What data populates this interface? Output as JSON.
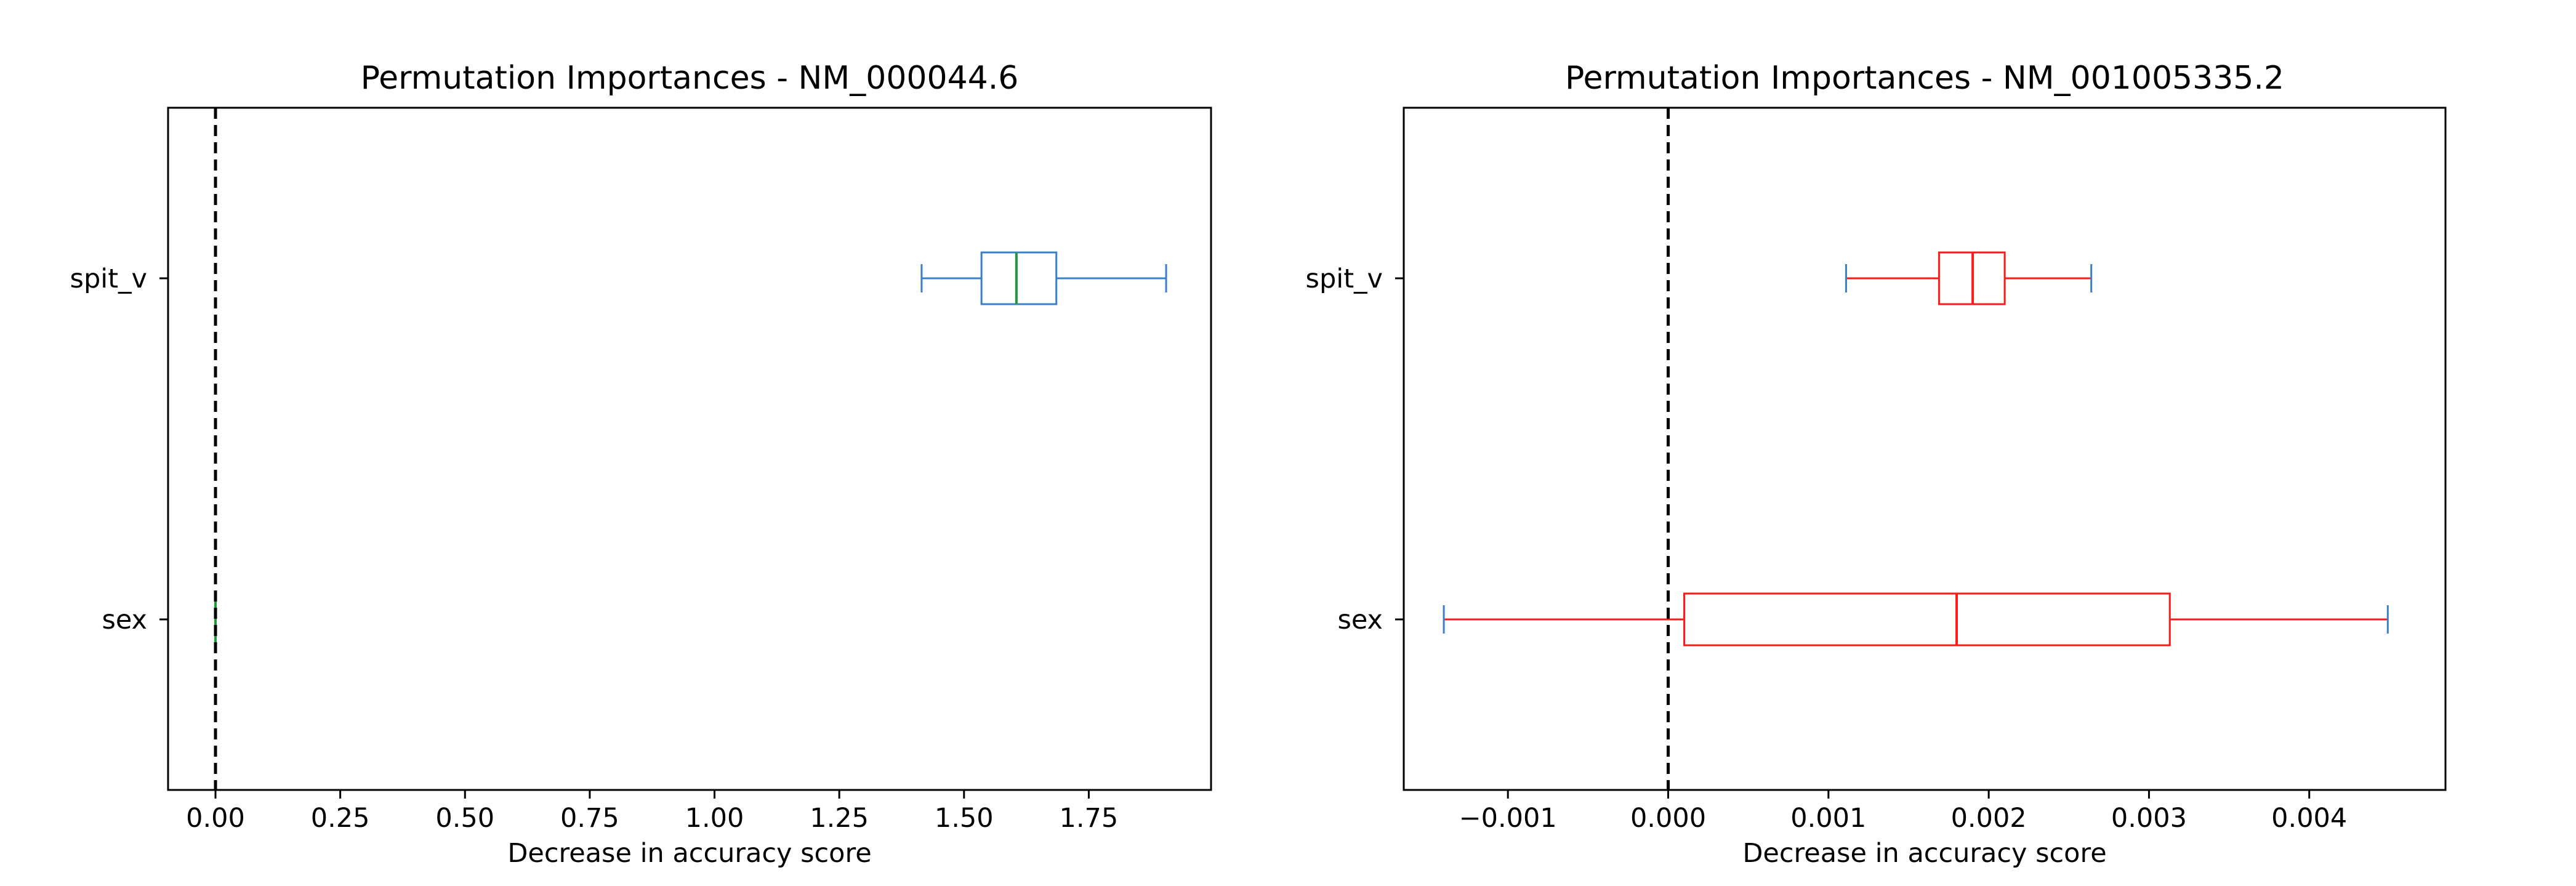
{
  "chart_data": [
    {
      "type": "boxplot",
      "orientation": "horizontal",
      "title": "Permutation Importances - NM_000044.6",
      "xlabel": "Decrease in accuracy score",
      "ylabel": "",
      "xlim": [
        -0.095,
        1.995
      ],
      "xticks": [
        0.0,
        0.25,
        0.5,
        0.75,
        1.0,
        1.25,
        1.5,
        1.75
      ],
      "xtick_labels": [
        "0.00",
        "0.25",
        "0.50",
        "0.75",
        "1.00",
        "1.25",
        "1.50",
        "1.75"
      ],
      "categories": [
        "spit_v",
        "sex"
      ],
      "boxes": [
        {
          "category": "spit_v",
          "whisker_low": 1.415,
          "q1": 1.535,
          "median": 1.605,
          "q3": 1.685,
          "whisker_high": 1.905
        },
        {
          "category": "sex",
          "whisker_low": 0.0,
          "q1": 0.0,
          "median": 0.0,
          "q3": 0.0,
          "whisker_high": 0.0
        }
      ],
      "reference_line": {
        "x": 0,
        "style": "dashed",
        "color": "#000000"
      },
      "colors": {
        "box": "#3b7fc4",
        "median": "#1f9a3a",
        "whisker": "#3b7fc4",
        "cap": "#3b7fc4"
      },
      "grid": false
    },
    {
      "type": "boxplot",
      "orientation": "horizontal",
      "title": "Permutation Importances - NM_001005335.2",
      "xlabel": "Decrease in accuracy score",
      "ylabel": "",
      "xlim": [
        -0.00165,
        0.00485
      ],
      "xticks": [
        -0.001,
        0.0,
        0.001,
        0.002,
        0.003,
        0.004
      ],
      "xtick_labels": [
        "−0.001",
        "0.000",
        "0.001",
        "0.002",
        "0.003",
        "0.004"
      ],
      "categories": [
        "spit_v",
        "sex"
      ],
      "boxes": [
        {
          "category": "spit_v",
          "whisker_low": 0.00111,
          "q1": 0.00169,
          "median": 0.0019,
          "q3": 0.0021,
          "whisker_high": 0.00264
        },
        {
          "category": "sex",
          "whisker_low": -0.0014,
          "q1": 0.0001,
          "median": 0.0018,
          "q3": 0.00313,
          "whisker_high": 0.00449
        }
      ],
      "reference_line": {
        "x": 0,
        "style": "dashed",
        "color": "#000000"
      },
      "colors": {
        "box": "#ff1a1a",
        "median": "#ff1a1a",
        "whisker": "#ff1a1a",
        "cap": "#3b7fc4"
      },
      "grid": false
    }
  ]
}
